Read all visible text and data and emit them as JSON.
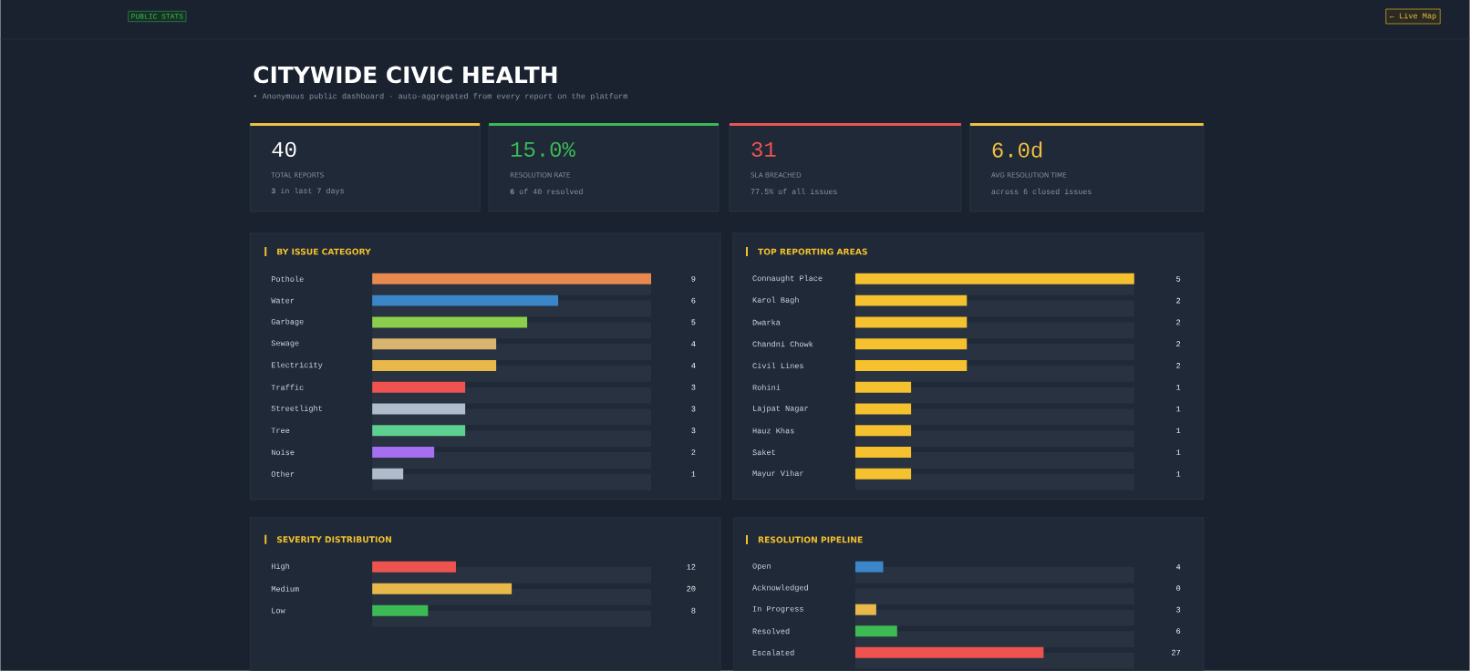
{
  "chart_data": [
    {
      "type": "other",
      "title": "CITYWIDE CIVIC HEALTH",
      "subtitle": "• Anonymous public dashboard · auto-aggregated from every report on the platform",
      "annotations": [
        "PUBLIC STATS",
        "← Live Map",
        "40",
        "TOTAL REPORTS",
        "**3** in last 7 days",
        "15.0%",
        "RESOLUTION RATE",
        "**6** of 40 resolved",
        "31",
        "SLA BREACHED",
        "77.5% of all issues",
        "6.0d",
        "AVG RESOLUTION TIME",
        "across 6 closed issues"
      ],
      "colors": [
        "#f0c040",
        "#3cba54",
        "#ef5350",
        "#f0c040"
      ]
    },
    {
      "type": "bar",
      "orientation": "horizontal",
      "title": "BY ISSUE CATEGORY",
      "data_labels": true,
      "xlim": [
        0,
        9
      ],
      "categories": [
        "Pothole",
        "Water",
        "Garbage",
        "Sewage",
        "Electricity",
        "Traffic",
        "Streetlight",
        "Tree",
        "Noise",
        "Other"
      ],
      "values": [
        9,
        6,
        5,
        4,
        4,
        3,
        3,
        3,
        2,
        1
      ],
      "colors": [
        "#e8894f",
        "#3a86c8",
        "#8ccf4d",
        "#d9b46e",
        "#e8b84a",
        "#ef5350",
        "#b0bccc",
        "#5dd08f",
        "#a66ef0",
        "#b0bccc"
      ]
    },
    {
      "type": "bar",
      "orientation": "horizontal",
      "title": "TOP REPORTING AREAS",
      "data_labels": true,
      "xlim": [
        0,
        5
      ],
      "categories": [
        "Connaught Place",
        "Karol Bagh",
        "Dwarka",
        "Chandni Chowk",
        "Civil Lines",
        "Rohini",
        "Lajpat Nagar",
        "Hauz Khas",
        "Saket",
        "Mayur Vihar"
      ],
      "values": [
        5,
        2,
        2,
        2,
        2,
        1,
        1,
        1,
        1,
        1
      ],
      "colors": [
        "#f5c12e",
        "#f5c12e",
        "#f5c12e",
        "#f5c12e",
        "#f5c12e",
        "#f5c12e",
        "#f5c12e",
        "#f5c12e",
        "#f5c12e",
        "#f5c12e"
      ]
    },
    {
      "type": "bar",
      "orientation": "horizontal",
      "title": "SEVERITY DISTRIBUTION",
      "data_labels": true,
      "xlim": [
        0,
        40
      ],
      "categories": [
        "High",
        "Medium",
        "Low"
      ],
      "values": [
        12,
        20,
        8
      ],
      "colors": [
        "#ef5350",
        "#e8b84a",
        "#3cba54"
      ]
    },
    {
      "type": "bar",
      "orientation": "horizontal",
      "title": "RESOLUTION PIPELINE",
      "data_labels": true,
      "xlim": [
        0,
        40
      ],
      "categories": [
        "Open",
        "Acknowledged",
        "In Progress",
        "Resolved",
        "Escalated"
      ],
      "values": [
        4,
        0,
        3,
        6,
        27
      ],
      "colors": [
        "#3a86c8",
        "#7b68ee",
        "#e8b84a",
        "#3cba54",
        "#ef5350"
      ]
    }
  ]
}
